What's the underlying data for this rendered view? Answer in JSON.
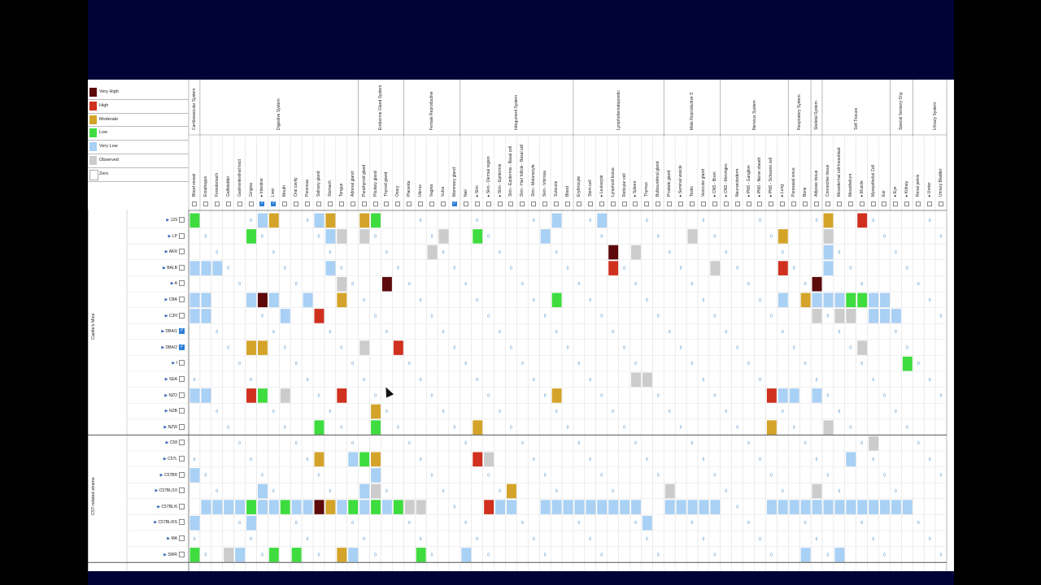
{
  "legend": [
    {
      "label": "Very High",
      "color": "#5c0a0a"
    },
    {
      "label": "High",
      "color": "#d0301e"
    },
    {
      "label": "Moderate",
      "color": "#d4a42a"
    },
    {
      "label": "Low",
      "color": "#3fdc3f"
    },
    {
      "label": "Very Low",
      "color": "#a9d0f5"
    },
    {
      "label": "Observed",
      "color": "#cccccc"
    },
    {
      "label": "Zero",
      "color": "#ffffff"
    }
  ],
  "systems": [
    {
      "name": "Cardiovascular System",
      "span": 1
    },
    {
      "name": "Digestive System",
      "span": 14
    },
    {
      "name": "Endocrine Gland System",
      "span": 4
    },
    {
      "name": "Female Reproductive",
      "span": 5
    },
    {
      "name": "Integument System",
      "span": 10
    },
    {
      "name": "Lymphohematopoietic",
      "span": 8
    },
    {
      "name": "Male Reproductive S",
      "span": 5
    },
    {
      "name": "Nervous System",
      "span": 6
    },
    {
      "name": "Respiratory System",
      "span": 2
    },
    {
      "name": "Skeletal System",
      "span": 1
    },
    {
      "name": "Soft Tissues",
      "span": 6
    },
    {
      "name": "Special Sensory Org",
      "span": 2
    },
    {
      "name": "Urinary System",
      "span": 4
    }
  ],
  "tissues": [
    "Blood vessel",
    "Esophagus",
    "Forestomach",
    "Gallbladder",
    "Gastrointestinal tract",
    "Gingiva",
    "Intestine",
    "Liver",
    "Mouth",
    "Oral cavity",
    "Pancreas",
    "Salivary gland",
    "Stomach",
    "Tongue",
    "Adrenal gland",
    "Parathyroid gland",
    "Pituitary gland",
    "Thyroid gland",
    "Ovary",
    "Placenta",
    "Uterus",
    "Vagina",
    "Vulva",
    "Mammary gland",
    "Nail",
    "Skin",
    "Skin - Dermal region",
    "Skin - Epidermis",
    "Skin - Epidermis - Basal cell",
    "Skin - Hair follicle - Basal cell",
    "Skin - Melanocyte",
    "Skin - Vibrissa",
    "Subcutis",
    "Blood",
    "Erythrocyte",
    "Stem cell",
    "Leukocyte",
    "Lymphoid tissue",
    "Reticular cell",
    "Spleen",
    "Thymus",
    "Bulbourethral gland",
    "Prostate gland",
    "Seminal vesicle",
    "Testis",
    "Vesicular gland",
    "CNS - Brain",
    "CNS - Meninges",
    "Neuroectoderm",
    "PNS - Ganglion",
    "PNS - Nerve sheath",
    "PNS - Schwann cell",
    "Lung",
    "Paranasal sinus",
    "Bone",
    "Adipose tissue",
    "Connective tissue",
    "Mesodermal cell/mesoblast",
    "Mesothelium",
    "Muscle",
    "Myoepithelial Cell",
    "Ear",
    "Eye",
    "Kidney",
    "Renal pelvis",
    "Ureter",
    "Urinary Bladder"
  ],
  "checked_tissues": [
    "Intestine",
    "Liver",
    "Mammary gland"
  ],
  "arrow_tissues": [
    "Intestine",
    "Skin",
    "Skin - Dermal region",
    "Skin - Epidermis",
    "Leukocyte",
    "Spleen",
    "Seminal vesicle",
    "CNS - Brain",
    "CNS - Meninges",
    "PNS - Ganglion",
    "PNS - Nerve sheath",
    "PNS - Schwann cell",
    "Lung",
    "Muscle",
    "Eye",
    "Kidney",
    "Ureter"
  ],
  "groups": [
    {
      "name": "Castle's Mice",
      "strains": [
        "129",
        "LP",
        "AKR",
        "BALB",
        "A",
        "CBA",
        "C3H",
        "DBA/1",
        "DBA/2",
        "I",
        "SEA",
        "NZO",
        "NZB",
        "NZW"
      ]
    },
    {
      "name": "C57-related strains",
      "strains": [
        "C58",
        "C57L",
        "C57BR",
        "C57BL/10",
        "C57BL/6",
        "C57BL/KS",
        "MA",
        "SWR"
      ]
    }
  ],
  "checked_strains": [
    "DBA/1",
    "DBA/2"
  ],
  "heatmap_rows": {
    "129": "L....V..2...V.M..V...MV.M....MM.L................V..............VV......V....H.................H.....H.V.....V..M.....H........",
    "LP": ".O...O....L....O.O.O.O..V.O...O..M..........O.....L....O......V............M.O..........O...............M....O..O............",
    "AKR": ".............V...........O.....V.....V....O....................L..........X...O..........................L......V.............",
    "BALB": "V.V.V..V.L...V.O.V.M.V..V..M.V.L.M.V.O.V...O.V.........V..................H..M..............O...........HV.V.V.LV..H.........",
    "A": ".O.......O.V.O...O........O.......X............................................L...................O.V.V......X..V.H.V.O......",
    "CBA": "V.V.......V.X.V.....V..V.VMV.M.V.M.H.V.....V.........V.V........L....................................O.VV...M.V.V.VVL.L.V.V...",
    "C3H": "V.V....L.X.V.V..V.....H..V.V.V.....X.V.O.V.........L.......................................................O..O..OO.O..VV.V.V",
    "DBA/1": "................................................................................................................................",
    "DBA/2": "..........M.M.................O..V..H..V...V..........................................................................O.........",
    "I": "...............................................L..............................................................................L.",
    "SEA": "..............................................................................O.O..............................................",
    "NZO": "V.V.......H.L...O..V.V.V..H....V.V.V.V..........................M.....................................H.VVV...V........V.L......",
    "NZB": "................................M..............................................X...............................................",
    "NZW": ".......O.......L......L.........L.................M...................................................M........OO................",
    "C58": "........................................................................................................................OO......",
    "C57L": "...L.........V.H......M.....V.L.M.................H.O...............................................................V..V........",
    "C57BR": "V..L.......L.H.....V.M...L.M....V..........................................V.........................................V.....V....",
    "C57BL/10": ".O..........V..........O......V.O.......................M..................O........O................O.....O.OO......O........",
    "C57BL/6": "..V.V.V.V.L.V.V.L.V.V.X.M.V.L.V.L.V.L.O.O....L...L..H.V.V..V..V.V.V.V.V.V.V.V.V..V..V.V.V.V.V..V.V.V..V.V.V.V.V.V.V.V.V.V.V.V.V",
    "C57BL/KS": "V.........V..........................................V..........................V...............................................",
    "MA": ".........................................H.......................L.......................M......................................",
    "SWR": "L..V..O.VV.L.OLV..L..V.V..M.V........V..L..V....V....................................................X...O.VV..L..V..........."
  },
  "cursor": {
    "label": "mouse-pointer"
  }
}
